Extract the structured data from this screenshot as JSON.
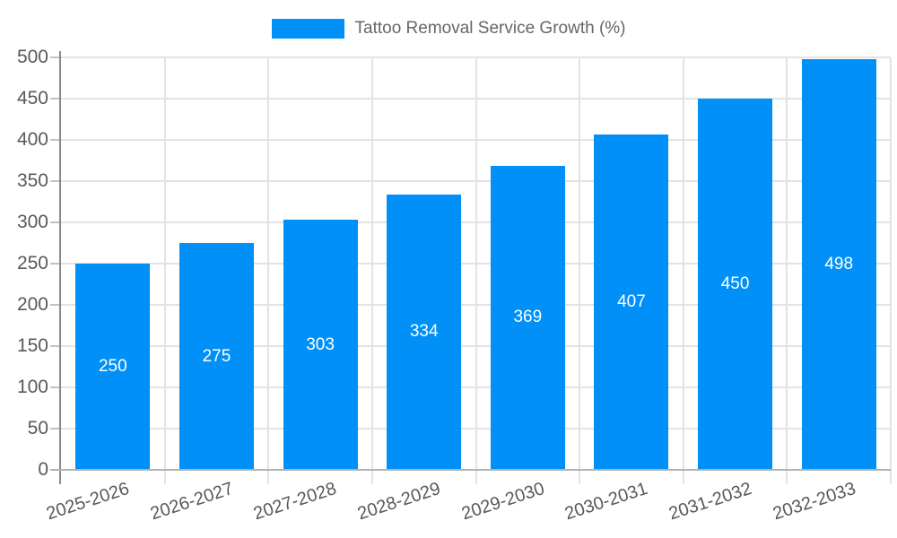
{
  "chart_data": {
    "type": "bar",
    "title": "",
    "legend_label": "Tattoo Removal Service Growth (%)",
    "legend_position": "top-center",
    "categories": [
      "2025-2026",
      "2026-2027",
      "2027-2028",
      "2028-2029",
      "2029-2030",
      "2030-2031",
      "2031-2032",
      "2032-2033"
    ],
    "series": [
      {
        "name": "Tattoo Removal Service Growth (%)",
        "values": [
          250,
          275,
          303,
          334,
          369,
          407,
          450,
          498
        ]
      }
    ],
    "xlabel": "",
    "ylabel": "",
    "ylim": [
      0,
      500
    ],
    "ytick_step": 50,
    "yticks": [
      0,
      50,
      100,
      150,
      200,
      250,
      300,
      350,
      400,
      450,
      500
    ],
    "grid": true,
    "show_value_labels": true,
    "value_label_position": "inside-center",
    "x_label_rotation_deg": -18,
    "colors": {
      "bar": "#0090f7",
      "value_label": "#ffffff",
      "grid": "#e3e3e3",
      "axis_y_line": "#8a8a8a",
      "axis_x_line": "#b3b3b3",
      "tick": "#c2c2c2",
      "tick_label": "#595959",
      "legend_text": "#666666",
      "background": "#ffffff"
    }
  }
}
